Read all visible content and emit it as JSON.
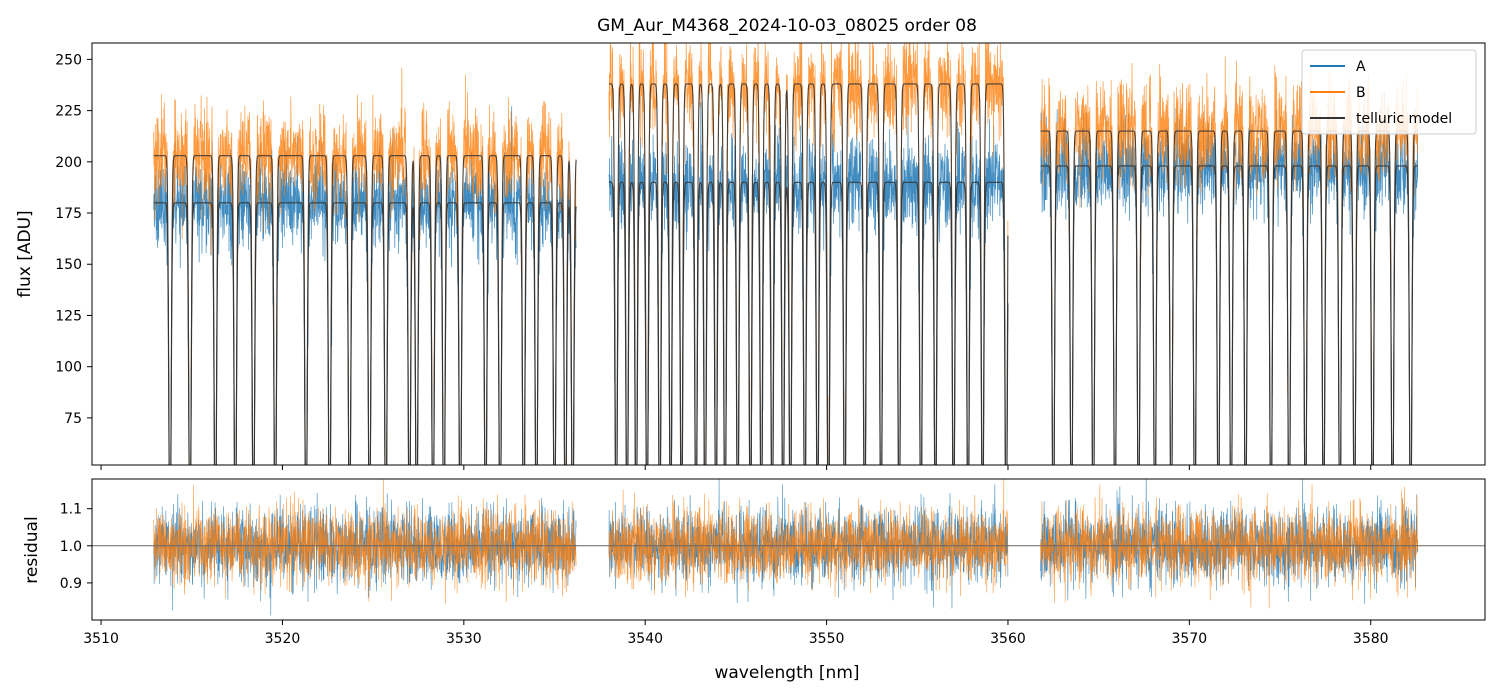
{
  "figure": {
    "title": "GM_Aur_M4368_2024-10-03_08025  order 08"
  },
  "colors": {
    "A": "#1f77b4",
    "B": "#ff7f0e",
    "telluric": "#333333",
    "refline": "#666666"
  },
  "chart_data": [
    {
      "type": "line",
      "panel": "flux",
      "title": "GM_Aur_M4368_2024-10-03_08025  order 08",
      "xlabel": "",
      "ylabel": "flux [ADU]",
      "xlim": [
        3509.5,
        3586.3
      ],
      "ylim": [
        52,
        258
      ],
      "yticks": [
        75,
        100,
        125,
        150,
        175,
        200,
        225,
        250
      ],
      "ytick_labels": [
        "75",
        "100",
        "125",
        "150",
        "175",
        "200",
        "225",
        "250"
      ],
      "segments_nm": [
        [
          3512.9,
          3536.2
        ],
        [
          3538.0,
          3560.0
        ],
        [
          3561.8,
          3582.6
        ]
      ],
      "legend": {
        "placement": "top-right",
        "entries": [
          "A",
          "B",
          "telluric model"
        ]
      },
      "series": [
        {
          "name": "A",
          "segment_continuum": [
            180,
            190,
            198
          ],
          "note_points": "noisy spectrum with deep telluric absorption lines"
        },
        {
          "name": "B",
          "segment_continuum": [
            203,
            238,
            215
          ]
        },
        {
          "name": "telluric model",
          "absorption_lines_nm": [
            3513.8,
            3514.9,
            3516.3,
            3517.4,
            3518.4,
            3519.6,
            3521.3,
            3522.6,
            3523.7,
            3524.8,
            3525.7,
            3527.0,
            3527.4,
            3528.3,
            3528.9,
            3529.8,
            3531.2,
            3532.0,
            3533.3,
            3534.0,
            3535.0,
            3535.6,
            3536.0,
            3538.4,
            3539.0,
            3539.5,
            3540.1,
            3540.8,
            3541.4,
            3542.0,
            3542.8,
            3543.3,
            3543.9,
            3544.4,
            3545.1,
            3545.8,
            3546.4,
            3547.0,
            3547.6,
            3548.0,
            3548.8,
            3549.5,
            3550.1,
            3551.0,
            3552.1,
            3553.0,
            3554.0,
            3555.2,
            3556.0,
            3557.0,
            3557.8,
            3558.6,
            3559.9,
            3562.5,
            3563.5,
            3564.7,
            3565.9,
            3567.2,
            3568.1,
            3569.0,
            3570.3,
            3571.6,
            3572.3,
            3573.1,
            3574.5,
            3575.5,
            3576.4,
            3577.4,
            3578.3,
            3579.1,
            3580.1,
            3581.2,
            3582.2
          ]
        }
      ]
    },
    {
      "type": "line",
      "panel": "residual",
      "xlabel": "wavelength [nm]",
      "ylabel": "residual",
      "xlim": [
        3509.5,
        3586.3
      ],
      "ylim": [
        0.8,
        1.18
      ],
      "xticks": [
        3510,
        3520,
        3530,
        3540,
        3550,
        3560,
        3570,
        3580
      ],
      "xtick_labels": [
        "3510",
        "3520",
        "3530",
        "3540",
        "3550",
        "3560",
        "3570",
        "3580"
      ],
      "yticks": [
        0.9,
        1.0,
        1.1
      ],
      "ytick_labels": [
        "0.9",
        "1.0",
        "1.1"
      ],
      "reference_line": 1.0,
      "series": [
        {
          "name": "A",
          "center": 1.0,
          "scatter": 0.05
        },
        {
          "name": "B",
          "center": 1.0,
          "scatter": 0.05
        }
      ]
    }
  ]
}
